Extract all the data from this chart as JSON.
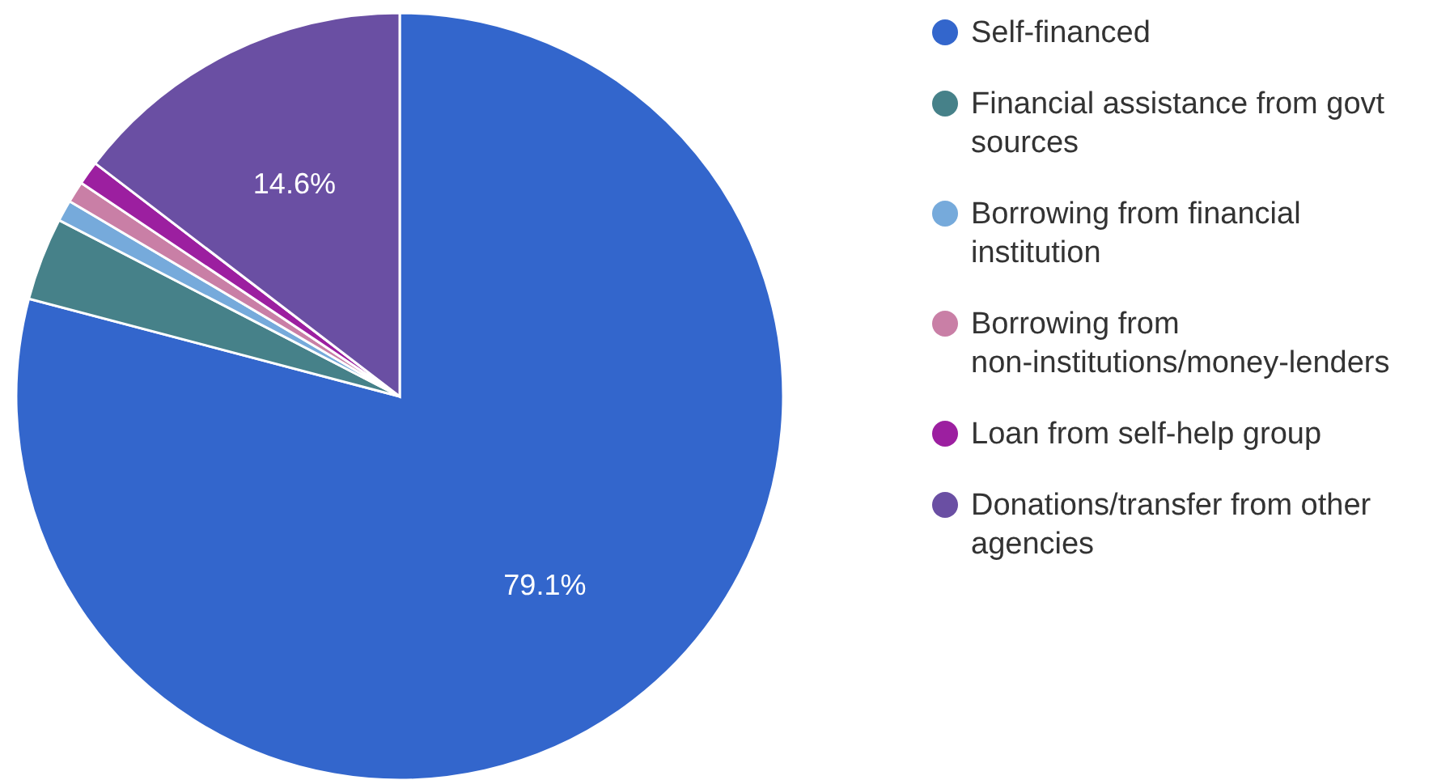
{
  "chart_data": {
    "type": "pie",
    "categories": [
      "Self-financed",
      "Financial assistance from govt sources",
      "Borrowing from financial institution",
      "Borrowing from non-institutions/money-lenders",
      "Loan from self-help group",
      "Donations/transfer from other agencies"
    ],
    "values": [
      79.1,
      3.5,
      0.9,
      0.9,
      1.0,
      14.6
    ],
    "colors": [
      "#3366cc",
      "#468189",
      "#76aadb",
      "#c97fa6",
      "#9c1fa0",
      "#6a4fa3"
    ],
    "value_labels": [
      "79.1%",
      null,
      null,
      null,
      null,
      "14.6%"
    ],
    "legend": "right"
  }
}
